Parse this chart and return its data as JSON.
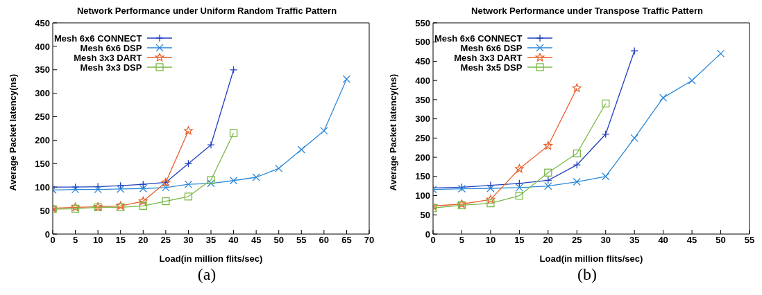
{
  "chart_data": [
    {
      "type": "line",
      "title": "Network Performance under Uniform Random Traffic Pattern",
      "xlabel": "Load(in million flits/sec)",
      "ylabel": "Average Packet latency(ns)",
      "annotations": [
        "(a)"
      ],
      "legend": "top left",
      "xlim": [
        0,
        70
      ],
      "xticks": [
        0,
        5,
        10,
        15,
        20,
        25,
        30,
        35,
        40,
        45,
        50,
        55,
        60,
        65,
        70
      ],
      "ylim": [
        0,
        450
      ],
      "yticks": [
        0,
        50,
        100,
        150,
        200,
        250,
        300,
        350,
        400,
        450
      ],
      "series": [
        {
          "name": "Mesh 6x6 CONNECT",
          "color": "#1f3fbf",
          "marker": "plus",
          "x": [
            0,
            5,
            10,
            15,
            20,
            25,
            30,
            35,
            40
          ],
          "values": [
            100,
            100,
            101,
            103,
            106,
            110,
            150,
            190,
            350
          ]
        },
        {
          "name": "Mesh 6x6 DSP",
          "color": "#2a88d8",
          "marker": "cross",
          "x": [
            0,
            5,
            10,
            15,
            20,
            25,
            30,
            35,
            40,
            45,
            50,
            55,
            60,
            65
          ],
          "values": [
            94,
            95,
            95,
            96,
            97,
            99,
            106,
            108,
            114,
            121,
            140,
            180,
            220,
            330
          ]
        },
        {
          "name": "Mesh 3x3 DART",
          "color": "#e8602c",
          "marker": "star",
          "x": [
            0,
            5,
            10,
            15,
            20,
            25,
            30
          ],
          "values": [
            55,
            57,
            58,
            60,
            70,
            110,
            220
          ]
        },
        {
          "name": "Mesh 3x3 DSP",
          "color": "#77b843",
          "marker": "square",
          "x": [
            0,
            5,
            10,
            15,
            20,
            25,
            30,
            35,
            40
          ],
          "values": [
            53,
            54,
            57,
            57,
            60,
            70,
            80,
            115,
            215
          ]
        }
      ]
    },
    {
      "type": "line",
      "title": "Network Performance under Transpose Traffic Pattern",
      "xlabel": "Load(in million flits/sec)",
      "ylabel": "Average Packet latency(ns)",
      "annotations": [
        "(b)"
      ],
      "legend": "top left",
      "xlim": [
        0,
        55
      ],
      "xticks": [
        0,
        5,
        10,
        15,
        20,
        25,
        30,
        35,
        40,
        45,
        50,
        55
      ],
      "ylim": [
        0,
        550
      ],
      "yticks": [
        0,
        50,
        100,
        150,
        200,
        250,
        300,
        350,
        400,
        450,
        500,
        550
      ],
      "series": [
        {
          "name": "Mesh 6x6 CONNECT",
          "color": "#1f3fbf",
          "marker": "plus",
          "x": [
            0,
            5,
            10,
            15,
            20,
            25,
            30,
            35
          ],
          "values": [
            120,
            122,
            127,
            132,
            140,
            180,
            260,
            477
          ]
        },
        {
          "name": "Mesh 6x6 DSP",
          "color": "#2a88d8",
          "marker": "cross",
          "x": [
            0,
            5,
            10,
            15,
            20,
            25,
            30,
            35,
            40,
            45,
            50
          ],
          "values": [
            116,
            118,
            119,
            121,
            125,
            136,
            150,
            250,
            355,
            400,
            470
          ]
        },
        {
          "name": "Mesh 3x3 DART",
          "color": "#e8602c",
          "marker": "star",
          "x": [
            0,
            5,
            10,
            15,
            20,
            25
          ],
          "values": [
            73,
            78,
            90,
            170,
            230,
            380
          ]
        },
        {
          "name": "Mesh 3x5 DSP",
          "color": "#77b843",
          "marker": "square",
          "x": [
            0,
            5,
            10,
            15,
            20,
            25,
            30
          ],
          "values": [
            68,
            75,
            80,
            100,
            160,
            210,
            340
          ]
        }
      ]
    }
  ]
}
